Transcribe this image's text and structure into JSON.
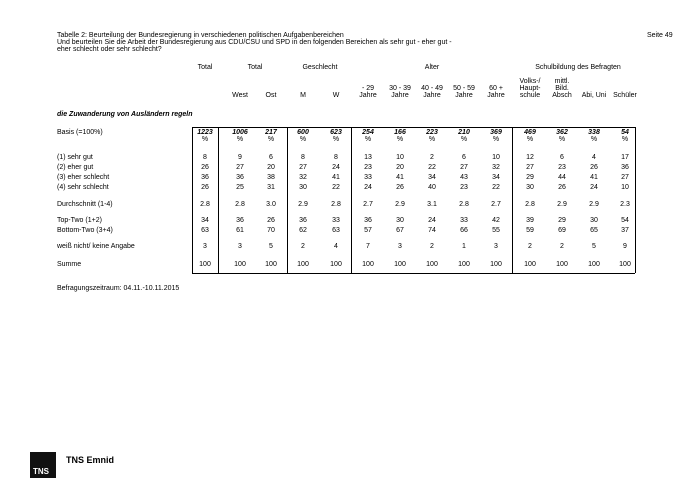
{
  "header": {
    "title": "Tabelle 2: Beurteilung der Bundesregierung in verschiedenen politischen Aufgabenbereichen",
    "page": "Seite 49",
    "question": [
      "Und beurteilen Sie die Arbeit der Bundesregierung aus CDU/CSU und SPD in den folgenden Bereichen als sehr gut - eher gut -",
      "eher schlecht oder sehr schlecht?"
    ]
  },
  "table": {
    "groups": [
      {
        "label": "Total",
        "columns": [
          null
        ]
      },
      {
        "label": "Total",
        "columns": [
          [
            "West"
          ],
          [
            "Ost"
          ]
        ]
      },
      {
        "label": "Geschlecht",
        "columns": [
          [
            "M"
          ],
          [
            "W"
          ]
        ]
      },
      {
        "label": "Alter",
        "columns": [
          [
            "- 29",
            "Jahre"
          ],
          [
            "30 - 39",
            "Jahre"
          ],
          [
            "40 - 49",
            "Jahre"
          ],
          [
            "50 - 59",
            "Jahre"
          ],
          [
            "60 +",
            "Jahre"
          ]
        ]
      },
      {
        "label": "Schulbildung des Befragten",
        "columns": [
          [
            "Volks-/",
            "Haupt-",
            "schule"
          ],
          [
            "mittl.",
            "Bild.",
            "Absch"
          ],
          [
            "Abi, Uni"
          ],
          [
            "Schüler"
          ]
        ]
      }
    ],
    "section": "die Zuwanderung von Ausländern regeln",
    "basis": {
      "label": "Basis (=100%)",
      "values": [
        1223,
        1006,
        217,
        600,
        623,
        254,
        166,
        223,
        210,
        369,
        469,
        362,
        338,
        54
      ],
      "unit": "%"
    },
    "blocks": [
      [
        {
          "label": "(1) sehr gut",
          "values": [
            8,
            9,
            6,
            8,
            8,
            13,
            10,
            2,
            6,
            10,
            12,
            6,
            4,
            17
          ]
        },
        {
          "label": "(2) eher gut",
          "values": [
            26,
            27,
            20,
            27,
            24,
            23,
            20,
            22,
            27,
            32,
            27,
            23,
            26,
            36
          ]
        },
        {
          "label": "(3) eher schlecht",
          "values": [
            36,
            36,
            38,
            32,
            41,
            33,
            41,
            34,
            43,
            34,
            29,
            44,
            41,
            27
          ]
        },
        {
          "label": "(4) sehr schlecht",
          "values": [
            26,
            25,
            31,
            30,
            22,
            24,
            26,
            40,
            23,
            22,
            30,
            26,
            24,
            10
          ]
        }
      ],
      [
        {
          "label": "Durchschnitt (1-4)",
          "values": [
            "2.8",
            "2.8",
            "3.0",
            "2.9",
            "2.8",
            "2.7",
            "2.9",
            "3.1",
            "2.8",
            "2.7",
            "2.8",
            "2.9",
            "2.9",
            "2.3"
          ]
        }
      ],
      [
        {
          "label": "Top-Two (1+2)",
          "values": [
            34,
            36,
            26,
            36,
            33,
            36,
            30,
            24,
            33,
            42,
            39,
            29,
            30,
            54
          ]
        },
        {
          "label": "Bottom-Two (3+4)",
          "values": [
            63,
            61,
            70,
            62,
            63,
            57,
            67,
            74,
            66,
            55,
            59,
            69,
            65,
            37
          ]
        }
      ],
      [
        {
          "label": "weiß nicht/ keine Angabe",
          "values": [
            3,
            3,
            5,
            2,
            4,
            7,
            3,
            2,
            1,
            3,
            2,
            2,
            5,
            9
          ]
        }
      ],
      [
        {
          "label": "Summe",
          "values": [
            100,
            100,
            100,
            100,
            100,
            100,
            100,
            100,
            100,
            100,
            100,
            100,
            100,
            100
          ]
        }
      ]
    ]
  },
  "footer": {
    "period": "Befragungszeitraum: 04.11.-10.11.2015",
    "logo": "TNS",
    "brand": "TNS Emnid"
  }
}
